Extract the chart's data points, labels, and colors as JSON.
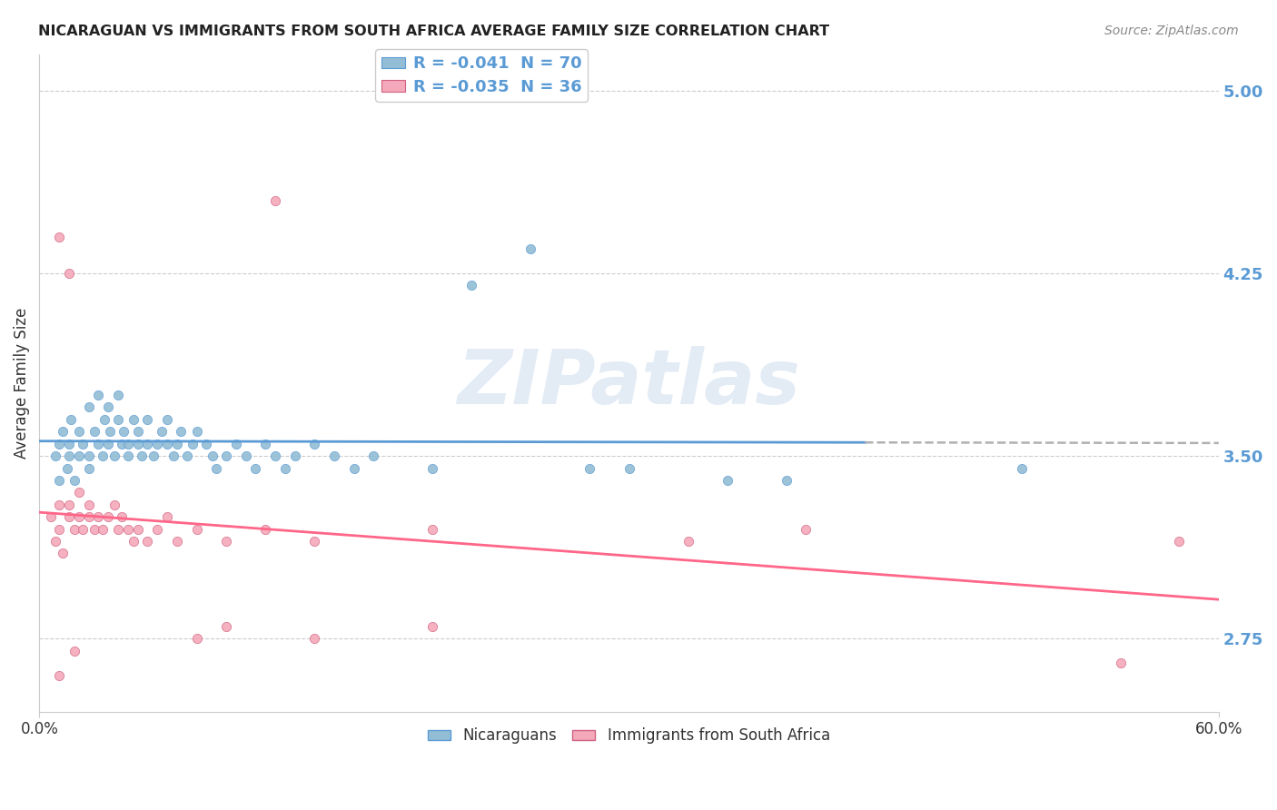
{
  "title": "NICARAGUAN VS IMMIGRANTS FROM SOUTH AFRICA AVERAGE FAMILY SIZE CORRELATION CHART",
  "source": "Source: ZipAtlas.com",
  "ylabel": "Average Family Size",
  "right_yticks": [
    5.0,
    4.25,
    3.5,
    2.75
  ],
  "xlim": [
    0.0,
    0.6
  ],
  "ylim": [
    2.45,
    5.15
  ],
  "legend1_label": "R = -0.041  N = 70",
  "legend2_label": "R = -0.035  N = 36",
  "color_blue": "#93BDD4",
  "color_pink": "#F4A9BA",
  "trendline_blue_color": "#5B9BD5",
  "trendline_pink_color": "#FF6688",
  "trendline_blue_dashed_color": "#B0B0B0",
  "blue_x": [
    0.008,
    0.01,
    0.01,
    0.012,
    0.014,
    0.015,
    0.015,
    0.016,
    0.018,
    0.02,
    0.02,
    0.022,
    0.025,
    0.025,
    0.025,
    0.028,
    0.03,
    0.03,
    0.032,
    0.033,
    0.035,
    0.035,
    0.036,
    0.038,
    0.04,
    0.04,
    0.042,
    0.043,
    0.045,
    0.045,
    0.048,
    0.05,
    0.05,
    0.052,
    0.055,
    0.055,
    0.058,
    0.06,
    0.062,
    0.065,
    0.065,
    0.068,
    0.07,
    0.072,
    0.075,
    0.078,
    0.08,
    0.085,
    0.088,
    0.09,
    0.095,
    0.1,
    0.105,
    0.11,
    0.115,
    0.12,
    0.125,
    0.13,
    0.14,
    0.15,
    0.16,
    0.17,
    0.2,
    0.22,
    0.25,
    0.28,
    0.3,
    0.35,
    0.38,
    0.5
  ],
  "blue_y": [
    3.5,
    3.4,
    3.55,
    3.6,
    3.45,
    3.5,
    3.55,
    3.65,
    3.4,
    3.5,
    3.6,
    3.55,
    3.7,
    3.5,
    3.45,
    3.6,
    3.55,
    3.75,
    3.5,
    3.65,
    3.55,
    3.7,
    3.6,
    3.5,
    3.65,
    3.75,
    3.55,
    3.6,
    3.5,
    3.55,
    3.65,
    3.55,
    3.6,
    3.5,
    3.55,
    3.65,
    3.5,
    3.55,
    3.6,
    3.55,
    3.65,
    3.5,
    3.55,
    3.6,
    3.5,
    3.55,
    3.6,
    3.55,
    3.5,
    3.45,
    3.5,
    3.55,
    3.5,
    3.45,
    3.55,
    3.5,
    3.45,
    3.5,
    3.55,
    3.5,
    3.45,
    3.5,
    3.45,
    4.2,
    4.35,
    3.45,
    3.45,
    3.4,
    3.4,
    3.45
  ],
  "pink_x": [
    0.006,
    0.008,
    0.01,
    0.01,
    0.012,
    0.015,
    0.015,
    0.018,
    0.02,
    0.02,
    0.022,
    0.025,
    0.025,
    0.028,
    0.03,
    0.032,
    0.035,
    0.038,
    0.04,
    0.042,
    0.045,
    0.048,
    0.05,
    0.055,
    0.06,
    0.065,
    0.07,
    0.08,
    0.095,
    0.115,
    0.14,
    0.2,
    0.33,
    0.39,
    0.55,
    0.58
  ],
  "pink_y": [
    3.25,
    3.15,
    3.2,
    3.3,
    3.1,
    3.25,
    3.3,
    3.2,
    3.25,
    3.35,
    3.2,
    3.25,
    3.3,
    3.2,
    3.25,
    3.2,
    3.25,
    3.3,
    3.2,
    3.25,
    3.2,
    3.15,
    3.2,
    3.15,
    3.2,
    3.25,
    3.15,
    3.2,
    3.15,
    3.2,
    3.15,
    3.2,
    3.15,
    3.2,
    2.65,
    3.15
  ],
  "pink_outliers_x": [
    0.01,
    0.018,
    0.12,
    0.01,
    0.015,
    0.08,
    0.095,
    0.14,
    0.2
  ],
  "pink_outliers_y": [
    2.6,
    2.7,
    4.55,
    4.4,
    4.25,
    2.75,
    2.8,
    2.75,
    2.8
  ],
  "background_color": "#FFFFFF",
  "grid_color": "#CCCCCC"
}
